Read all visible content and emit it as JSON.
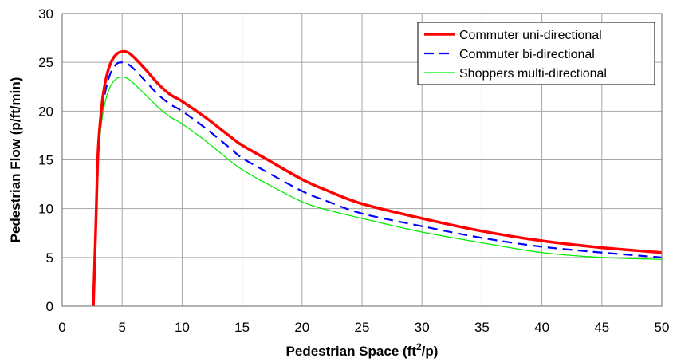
{
  "chart_data": {
    "type": "line",
    "title": "",
    "xlabel": {
      "prefix": "Pedestrian Space (ft",
      "sup": "2",
      "suffix": "/p)"
    },
    "ylabel": "Pedestrian Flow (p/ft/min)",
    "xlim": [
      0,
      50
    ],
    "ylim": [
      0,
      30
    ],
    "xticks": [
      0,
      5,
      10,
      15,
      20,
      25,
      30,
      35,
      40,
      45,
      50
    ],
    "yticks": [
      0,
      5,
      10,
      15,
      20,
      25,
      30
    ],
    "grid": true,
    "legend_position": "top-right",
    "series": [
      {
        "name": "Commuter uni-directional",
        "color": "#ff0000",
        "style": "solid",
        "x": [
          2.6,
          2.8,
          3.0,
          3.3,
          3.6,
          4.0,
          4.5,
          5.0,
          5.5,
          6.0,
          7.0,
          8.0,
          9.0,
          10.0,
          12.0,
          14.0,
          15.0,
          17.0,
          20.0,
          22.0,
          25.0,
          30.0,
          35.0,
          40.0,
          45.0,
          50.0
        ],
        "y": [
          0,
          8,
          16,
          20.5,
          23,
          24.8,
          25.8,
          26.1,
          26.0,
          25.5,
          24.2,
          22.8,
          21.7,
          21.0,
          19.3,
          17.4,
          16.5,
          15.1,
          13.0,
          11.9,
          10.5,
          9.0,
          7.7,
          6.7,
          6.0,
          5.5
        ]
      },
      {
        "name": "Commuter bi-directional",
        "color": "#0000ff",
        "style": "dashed",
        "x": [
          2.6,
          2.8,
          3.0,
          3.3,
          3.6,
          4.0,
          4.5,
          5.0,
          5.5,
          6.0,
          7.0,
          8.0,
          9.0,
          10.0,
          12.0,
          14.0,
          15.0,
          17.0,
          20.0,
          22.0,
          25.0,
          30.0,
          35.0,
          40.0,
          45.0,
          50.0
        ],
        "y": [
          0,
          8,
          15.5,
          19.8,
          22,
          23.8,
          24.8,
          25.0,
          24.8,
          24.3,
          23.0,
          21.7,
          20.7,
          20.0,
          18.2,
          16.2,
          15.2,
          13.8,
          11.8,
          10.8,
          9.5,
          8.2,
          7.0,
          6.1,
          5.5,
          5.0
        ]
      },
      {
        "name": "Shoppers multi-directional",
        "color": "#00ee00",
        "style": "solid",
        "x": [
          2.6,
          2.8,
          3.0,
          3.3,
          3.6,
          4.0,
          4.5,
          5.0,
          5.5,
          6.0,
          7.0,
          8.0,
          9.0,
          10.0,
          12.0,
          14.0,
          15.0,
          17.0,
          20.0,
          22.0,
          25.0,
          30.0,
          35.0,
          40.0,
          45.0,
          50.0
        ],
        "y": [
          0,
          7.5,
          15,
          19,
          21,
          22.5,
          23.3,
          23.5,
          23.3,
          22.8,
          21.6,
          20.4,
          19.4,
          18.7,
          16.9,
          14.9,
          14.0,
          12.6,
          10.7,
          9.9,
          9.0,
          7.6,
          6.5,
          5.5,
          5.0,
          4.8
        ]
      }
    ]
  }
}
